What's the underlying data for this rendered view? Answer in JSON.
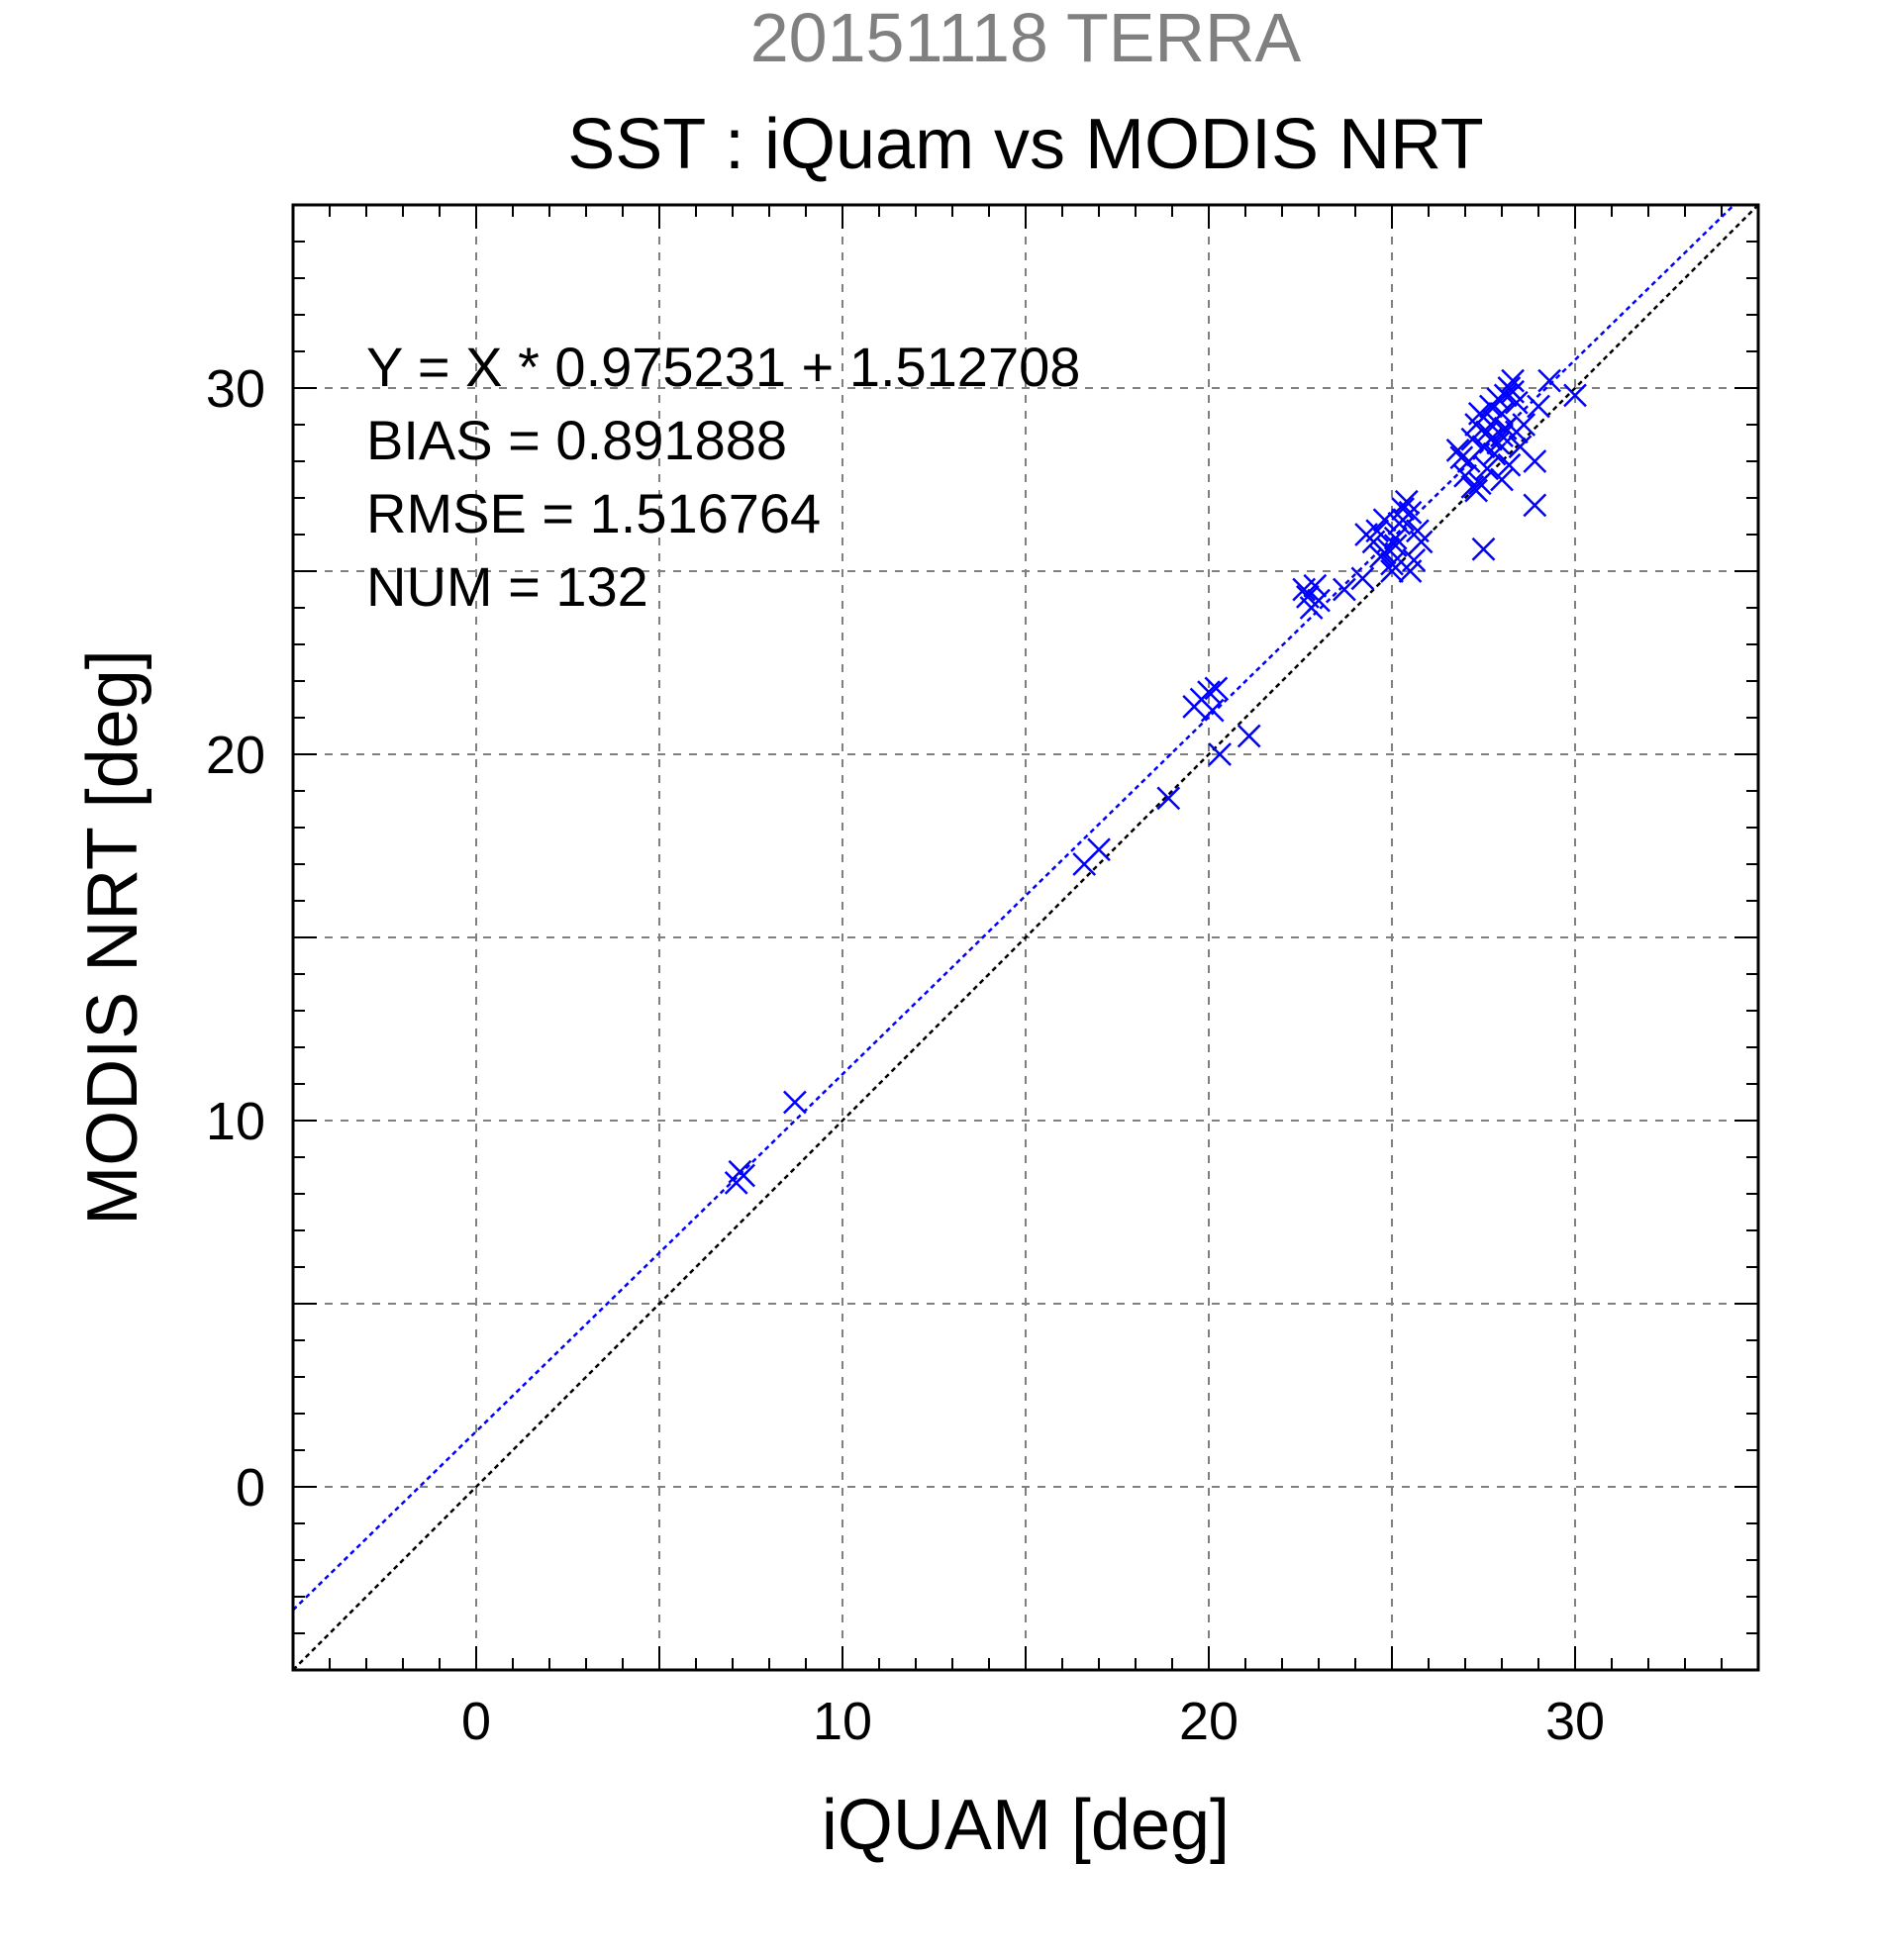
{
  "colors": {
    "background": "#ffffff",
    "header": "#808080",
    "title": "#000000",
    "series": "#0000ff",
    "identity_line": "#000000",
    "grid": "#808080"
  },
  "chart_data": {
    "type": "scatter",
    "header": "20151118 TERRA",
    "title": "SST : iQuam vs MODIS NRT",
    "xlabel": "iQUAM [deg]",
    "ylabel": "MODIS NRT [deg]",
    "xlim": [
      -5,
      35
    ],
    "ylim": [
      -5,
      35
    ],
    "xticks": [
      0,
      10,
      20,
      30
    ],
    "yticks": [
      0,
      10,
      20,
      30
    ],
    "grid": true,
    "marker": "x",
    "annotations": [
      "Y = X * 0.975231 + 1.512708",
      "BIAS = 0.891888",
      "RMSE = 1.516764",
      "NUM = 132"
    ],
    "fit_line": {
      "slope": 0.975231,
      "intercept": 1.512708
    },
    "identity_line": {
      "slope": 1,
      "intercept": 0
    },
    "points": {
      "x": [
        7.1,
        7.3,
        7.2,
        8.7,
        16.6,
        17.0,
        18.9,
        19.6,
        19.8,
        20.0,
        20.2,
        20.1,
        20.3,
        21.1,
        22.6,
        22.7,
        22.9,
        23.0,
        22.8,
        23.7,
        24.2,
        24.3,
        24.5,
        24.6,
        24.7,
        24.8,
        24.9,
        25.0,
        25.1,
        25.2,
        25.0,
        24.8,
        25.3,
        25.4,
        25.5,
        25.6,
        25.7,
        25.5,
        25.8,
        25.3,
        25.1,
        26.8,
        27.0,
        27.1,
        27.2,
        27.3,
        27.4,
        27.5,
        27.4,
        27.3,
        27.5,
        27.6,
        27.7,
        27.8,
        27.9,
        28.0,
        28.1,
        28.2,
        28.3,
        28.4,
        27.6,
        27.8,
        28.0,
        28.2,
        28.5,
        28.3,
        28.1,
        28.6,
        28.9,
        29.0,
        29.3,
        30.0,
        28.9,
        27.5,
        27.2,
        27.7,
        28.0,
        27.9,
        28.4,
        26.9
      ],
      "y": [
        8.3,
        8.5,
        8.6,
        10.5,
        17.0,
        17.4,
        18.8,
        21.3,
        21.5,
        21.7,
        21.8,
        21.2,
        20.0,
        20.5,
        24.5,
        24.3,
        24.6,
        24.2,
        24.0,
        24.5,
        24.8,
        26.0,
        25.8,
        26.1,
        25.4,
        26.4,
        25.6,
        25.2,
        25.9,
        26.3,
        25.0,
        25.5,
        26.7,
        26.9,
        26.6,
        25.3,
        26.1,
        25.0,
        25.8,
        26.4,
        25.7,
        28.3,
        27.6,
        28.0,
        28.6,
        29.0,
        29.3,
        28.4,
        27.4,
        27.2,
        29.2,
        28.8,
        29.5,
        29.1,
        28.5,
        29.3,
        29.8,
        30.0,
        30.2,
        29.6,
        27.8,
        28.2,
        28.7,
        27.9,
        28.4,
        29.9,
        28.9,
        29.0,
        28.0,
        29.5,
        30.2,
        29.8,
        26.8,
        25.6,
        27.3,
        28.6,
        27.5,
        29.7,
        28.8,
        28.1
      ]
    }
  }
}
